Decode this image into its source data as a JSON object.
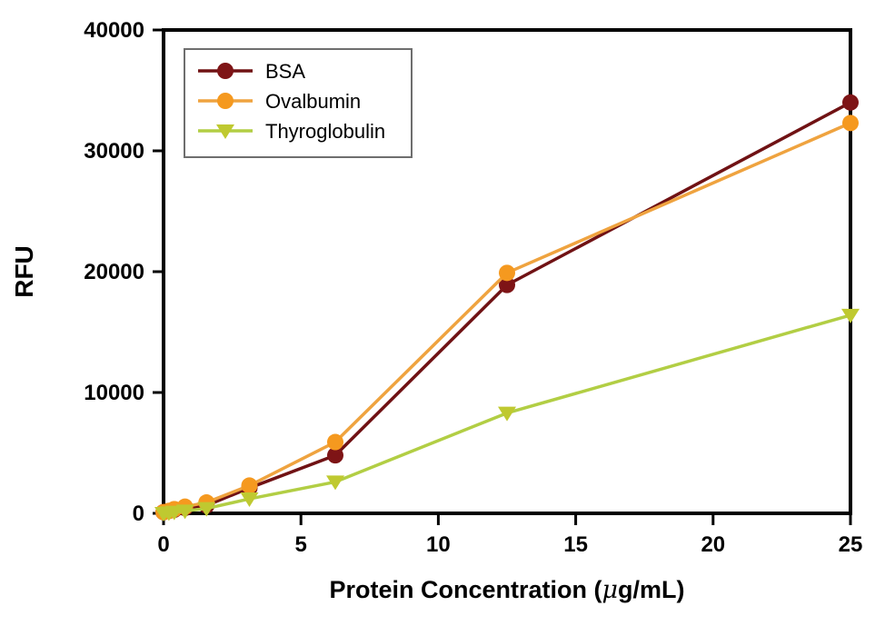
{
  "chart_data": {
    "type": "line",
    "title": "",
    "xlabel": "Protein Concentration (μg/mL)",
    "ylabel": "RFU",
    "xlim": [
      0,
      25
    ],
    "ylim": [
      0,
      40000
    ],
    "xticks": [
      0,
      5,
      10,
      15,
      20,
      25
    ],
    "yticks": [
      0,
      10000,
      20000,
      30000,
      40000
    ],
    "grid": false,
    "legend_position": "top-left-inside",
    "x": [
      0,
      0.195,
      0.39,
      0.78,
      1.5625,
      3.125,
      6.25,
      12.5,
      25
    ],
    "series": [
      {
        "name": "BSA",
        "marker": "circle",
        "line_color": "#701214",
        "marker_color": "#7E1416",
        "values": [
          100,
          200,
          300,
          450,
          650,
          2100,
          4800,
          18900,
          34000
        ]
      },
      {
        "name": "Ovalbumin",
        "marker": "circle",
        "line_color": "#EFA33F",
        "marker_color": "#F5991F",
        "values": [
          100,
          200,
          350,
          550,
          900,
          2300,
          5900,
          19900,
          32300
        ]
      },
      {
        "name": "Thyroglobulin",
        "marker": "triangle-down",
        "line_color": "#B2CE44",
        "marker_color": "#BFC930",
        "values": [
          0,
          50,
          100,
          200,
          400,
          1200,
          2600,
          8300,
          16400
        ]
      }
    ]
  },
  "legend": {
    "border_color": "#6e6e6e",
    "background": "#ffffff"
  },
  "colors": {
    "axis": "#000000",
    "background": "#ffffff"
  }
}
